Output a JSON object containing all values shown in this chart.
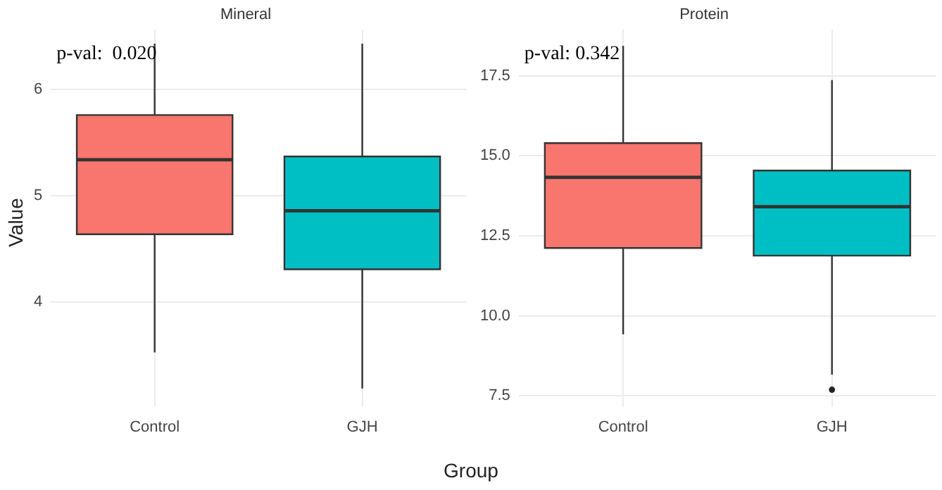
{
  "chart_data": [
    {
      "type": "box",
      "title": "Mineral",
      "xlabel": "Group",
      "ylabel": "Value",
      "categories": [
        "Control",
        "GJH"
      ],
      "colors": [
        "#f8766d",
        "#00bfc4"
      ],
      "boxes": [
        {
          "low": 3.53,
          "q1": 4.64,
          "median": 5.34,
          "q3": 5.76,
          "high": 6.43
        },
        {
          "low": 3.19,
          "q1": 4.31,
          "median": 4.86,
          "q3": 5.37,
          "high": 6.43
        }
      ],
      "ylim": [
        3.02,
        6.56
      ],
      "yticks": [
        4,
        5,
        6
      ],
      "grid": true,
      "annotations": [
        "p-val:  0.020"
      ]
    },
    {
      "type": "box",
      "title": "Protein",
      "categories": [
        "Control",
        "GJH"
      ],
      "colors": [
        "#f8766d",
        "#00bfc4"
      ],
      "boxes": [
        {
          "low": 9.42,
          "q1": 12.12,
          "median": 14.33,
          "q3": 15.4,
          "high": 18.44
        },
        {
          "low": 8.16,
          "q1": 11.88,
          "median": 13.41,
          "q3": 14.54,
          "high": 17.37,
          "outliers": [
            7.69
          ]
        }
      ],
      "ylim": [
        7.16,
        18.94
      ],
      "yticks": [
        {
          "value": 7.5,
          "label": "7.5"
        },
        {
          "value": 10,
          "label": "10.0"
        },
        {
          "value": 12.5,
          "label": "12.5"
        },
        {
          "value": 15,
          "label": "15.0"
        },
        {
          "value": 17.5,
          "label": "17.5"
        }
      ],
      "grid": true,
      "annotations": [
        "p-val: 0.342"
      ]
    }
  ]
}
